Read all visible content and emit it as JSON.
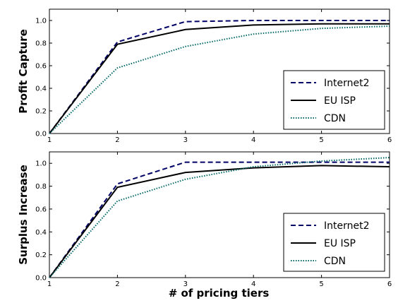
{
  "chart_data": [
    {
      "type": "line",
      "ylabel": "Profit Capture",
      "xlabel": "",
      "xlim": [
        1,
        6
      ],
      "ylim": [
        0,
        1.1
      ],
      "xticks": [
        "1",
        "2",
        "3",
        "4",
        "5",
        "6"
      ],
      "yticks": [
        "0.0",
        "0.2",
        "0.4",
        "0.6",
        "0.8",
        "1.0"
      ],
      "legend_position": "bottom-right",
      "x": [
        1,
        2,
        3,
        4,
        5,
        6
      ],
      "series": [
        {
          "name": "Internet2",
          "style": "dashed",
          "color": "#000066",
          "values": [
            0.0,
            0.81,
            0.99,
            1.0,
            1.0,
            1.0
          ]
        },
        {
          "name": "EU ISP",
          "style": "solid",
          "color": "#000000",
          "values": [
            0.0,
            0.79,
            0.92,
            0.96,
            0.97,
            0.97
          ]
        },
        {
          "name": "CDN",
          "style": "dotted",
          "color": "#006666",
          "values": [
            0.0,
            0.58,
            0.77,
            0.88,
            0.93,
            0.95
          ]
        }
      ]
    },
    {
      "type": "line",
      "ylabel": "Surplus Increase",
      "xlabel": "# of pricing tiers",
      "xlim": [
        1,
        6
      ],
      "ylim": [
        0,
        1.1
      ],
      "xticks": [
        "1",
        "2",
        "3",
        "4",
        "5",
        "6"
      ],
      "yticks": [
        "0.0",
        "0.2",
        "0.4",
        "0.6",
        "0.8",
        "1.0"
      ],
      "legend_position": "bottom-right",
      "x": [
        1,
        2,
        3,
        4,
        5,
        6
      ],
      "series": [
        {
          "name": "Internet2",
          "style": "dashed",
          "color": "#000066",
          "values": [
            0.0,
            0.82,
            1.01,
            1.01,
            1.01,
            1.01
          ]
        },
        {
          "name": "EU ISP",
          "style": "solid",
          "color": "#000000",
          "values": [
            0.0,
            0.79,
            0.92,
            0.96,
            0.98,
            0.97
          ]
        },
        {
          "name": "CDN",
          "style": "dotted",
          "color": "#006666",
          "values": [
            0.0,
            0.67,
            0.86,
            0.97,
            1.02,
            1.05
          ]
        }
      ]
    }
  ]
}
